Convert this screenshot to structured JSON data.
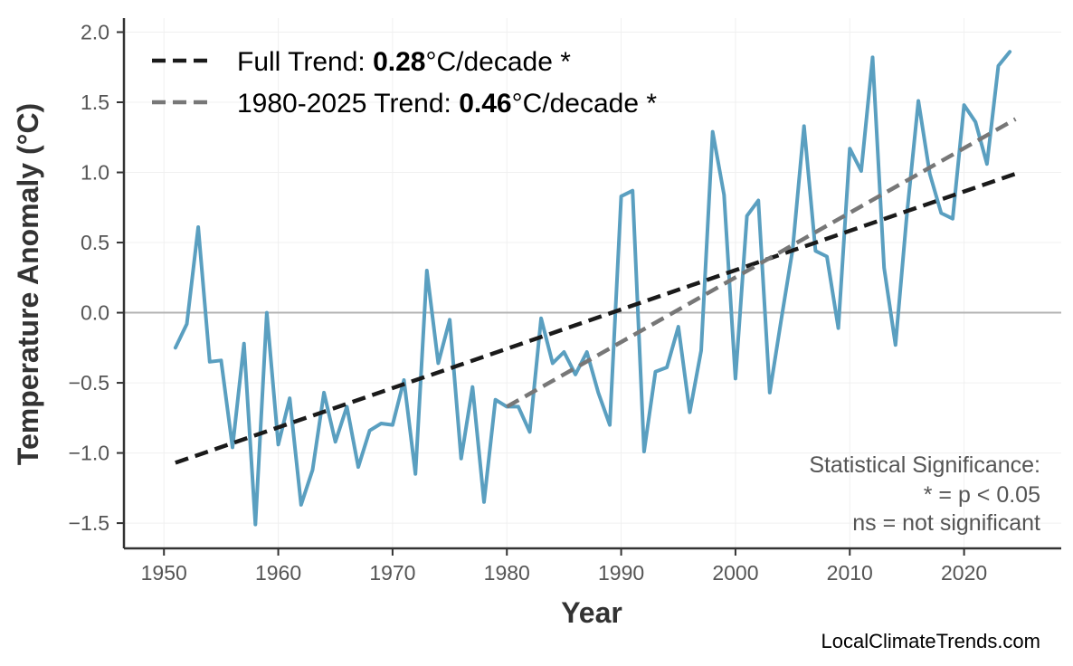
{
  "chart_data": {
    "type": "line",
    "xlabel": "Year",
    "ylabel": "Temperature Anomaly (°C)",
    "xlim": [
      1946.5,
      2028.5
    ],
    "ylim": [
      -1.68,
      2.1
    ],
    "x_ticks": [
      1950,
      1960,
      1970,
      1980,
      1990,
      2000,
      2010,
      2020
    ],
    "y_ticks": [
      -1.5,
      -1.0,
      -0.5,
      0.0,
      0.5,
      1.0,
      1.5,
      2.0
    ],
    "y_tick_labels": [
      "−1.5",
      "−1.0",
      "−0.5",
      "0.0",
      "0.5",
      "1.0",
      "1.5",
      "2.0"
    ],
    "grid": true,
    "legend_position": "top-left",
    "series": [
      {
        "color": "#5a9fc0",
        "x": [
          1951,
          1952,
          1953,
          1954,
          1955,
          1956,
          1957,
          1958,
          1959,
          1960,
          1961,
          1962,
          1963,
          1964,
          1965,
          1966,
          1967,
          1968,
          1969,
          1970,
          1971,
          1972,
          1973,
          1974,
          1975,
          1976,
          1977,
          1978,
          1979,
          1980,
          1981,
          1982,
          1983,
          1984,
          1985,
          1986,
          1987,
          1988,
          1989,
          1990,
          1991,
          1992,
          1993,
          1994,
          1995,
          1996,
          1997,
          1998,
          1999,
          2000,
          2001,
          2002,
          2003,
          2004,
          2005,
          2006,
          2007,
          2008,
          2009,
          2010,
          2011,
          2012,
          2013,
          2014,
          2015,
          2016,
          2017,
          2018,
          2019,
          2020,
          2021,
          2022,
          2023,
          2024
        ],
        "values": [
          -0.25,
          -0.08,
          0.61,
          -0.35,
          -0.34,
          -0.96,
          -0.22,
          -1.51,
          0.0,
          -0.94,
          -0.61,
          -1.37,
          -1.12,
          -0.57,
          -0.92,
          -0.67,
          -1.1,
          -0.84,
          -0.79,
          -0.8,
          -0.48,
          -1.15,
          0.3,
          -0.36,
          -0.05,
          -1.04,
          -0.53,
          -1.35,
          -0.62,
          -0.67,
          -0.67,
          -0.85,
          -0.04,
          -0.36,
          -0.28,
          -0.44,
          -0.28,
          -0.57,
          -0.8,
          0.83,
          0.87,
          -0.99,
          -0.42,
          -0.39,
          -0.1,
          -0.71,
          -0.27,
          1.29,
          0.84,
          -0.47,
          0.69,
          0.8,
          -0.57,
          -0.05,
          0.45,
          1.33,
          0.44,
          0.4,
          -0.11,
          1.17,
          1.01,
          1.82,
          0.32,
          -0.23,
          0.7,
          1.51,
          0.99,
          0.71,
          0.67,
          1.48,
          1.36,
          1.06,
          1.76,
          1.86
        ]
      }
    ],
    "trend_lines": [
      {
        "color": "#1a1a1a",
        "x": [
          1951,
          2024.5
        ],
        "values": [
          -1.07,
          0.99
        ],
        "legend_prefix": "Full Trend: ",
        "legend_value": "0.28",
        "legend_suffix": "°C/decade *"
      },
      {
        "color": "#777777",
        "x": [
          1980,
          2024.5
        ],
        "values": [
          -0.67,
          1.38
        ],
        "legend_prefix": "1980-2025 Trend: ",
        "legend_value": "0.46",
        "legend_suffix": "°C/decade *"
      }
    ],
    "zero_line": 0.0,
    "annotation": [
      "Statistical Significance:",
      "* = p < 0.05",
      "ns = not significant"
    ],
    "credit": "LocalClimateTrends.com"
  }
}
